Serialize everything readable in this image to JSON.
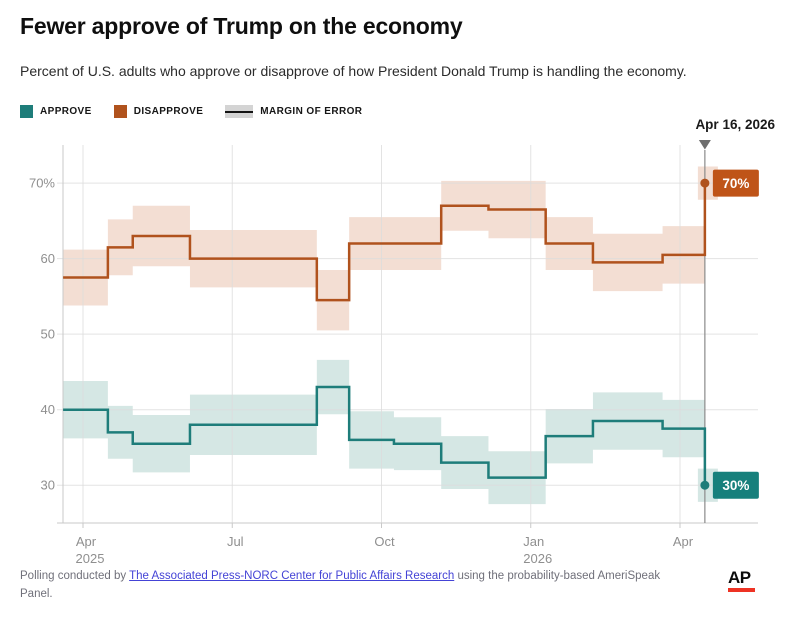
{
  "header": {
    "title": "Fewer approve of Trump on the economy",
    "subtitle": "Percent of U.S. adults who approve or disapprove of how President Donald Trump is handling the economy."
  },
  "legend": {
    "approve_label": "APPROVE",
    "disapprove_label": "DISAPPROVE",
    "moe_label": "MARGIN OF ERROR"
  },
  "colors": {
    "approve": "#1e7d7a",
    "approve_band": "#d5e7e4",
    "approve_box": "#17807c",
    "disapprove": "#b0521d",
    "disapprove_band": "#f3ded3",
    "disapprove_box": "#bf5418",
    "event_line": "#8b8b8b",
    "event_marker": "#6e6e6e",
    "grid": "#dcdcdc",
    "axis": "#c9c9c9",
    "tick_text": "#8f8f8f",
    "link": "#4443d6",
    "ap_red": "#ee3324"
  },
  "chart_data": {
    "type": "line",
    "subtype": "step-with-margin-of-error-bands",
    "title": "Fewer approve of Trump on the economy",
    "xlabel": "",
    "ylabel": "Percent",
    "x_axis": {
      "unit": "month index (Apr 1, 2025 = 1; Apr 1, 2026 = 13)",
      "domain": [
        0.6,
        14.6
      ],
      "ticks": [
        {
          "m": 1,
          "label": "Apr",
          "sublabel": "2025"
        },
        {
          "m": 4,
          "label": "Jul"
        },
        {
          "m": 7,
          "label": "Oct"
        },
        {
          "m": 10,
          "label": "Jan",
          "sublabel": "2026"
        },
        {
          "m": 13,
          "label": "Apr"
        }
      ]
    },
    "y_axis": {
      "domain": [
        25,
        75
      ],
      "ticks": [
        {
          "v": 70,
          "label": "70%"
        },
        {
          "v": 60,
          "label": "60"
        },
        {
          "v": 50,
          "label": "50"
        },
        {
          "v": 40,
          "label": "40"
        },
        {
          "v": 30,
          "label": "30"
        }
      ]
    },
    "event_line": {
      "m": 13.5,
      "label": "Apr 16, 2026"
    },
    "series": [
      {
        "name": "Disapprove",
        "steps": [
          {
            "from": 0.6,
            "to": 1.5,
            "value": 57.5,
            "moe": 3.7
          },
          {
            "from": 1.5,
            "to": 2.0,
            "value": 61.5,
            "moe": 3.7
          },
          {
            "from": 2.0,
            "to": 3.15,
            "value": 63,
            "moe": 4.0
          },
          {
            "from": 3.15,
            "to": 5.7,
            "value": 60,
            "moe": 3.8
          },
          {
            "from": 5.7,
            "to": 6.35,
            "value": 54.5,
            "moe": 4.0
          },
          {
            "from": 6.35,
            "to": 7.25,
            "value": 62,
            "moe": 3.5
          },
          {
            "from": 7.25,
            "to": 8.2,
            "value": 62,
            "moe": 3.5
          },
          {
            "from": 8.2,
            "to": 9.15,
            "value": 67,
            "moe": 3.3
          },
          {
            "from": 9.15,
            "to": 10.3,
            "value": 66.5,
            "moe": 3.8
          },
          {
            "from": 10.3,
            "to": 11.25,
            "value": 62,
            "moe": 3.5
          },
          {
            "from": 11.25,
            "to": 12.65,
            "value": 59.5,
            "moe": 3.8
          },
          {
            "from": 12.65,
            "to": 13.5,
            "value": 60.5,
            "moe": 3.8
          }
        ],
        "final": {
          "m": 13.5,
          "value": 70,
          "moe": 2.2,
          "label": "70%"
        }
      },
      {
        "name": "Approve",
        "steps": [
          {
            "from": 0.6,
            "to": 1.5,
            "value": 40,
            "moe": 3.8
          },
          {
            "from": 1.5,
            "to": 2.0,
            "value": 37,
            "moe": 3.5
          },
          {
            "from": 2.0,
            "to": 3.15,
            "value": 35.5,
            "moe": 3.8
          },
          {
            "from": 3.15,
            "to": 5.7,
            "value": 38,
            "moe": 4.0
          },
          {
            "from": 5.7,
            "to": 6.35,
            "value": 43,
            "moe": 3.6
          },
          {
            "from": 6.35,
            "to": 7.25,
            "value": 36,
            "moe": 3.8
          },
          {
            "from": 7.25,
            "to": 8.2,
            "value": 35.5,
            "moe": 3.5
          },
          {
            "from": 8.2,
            "to": 9.15,
            "value": 33,
            "moe": 3.5
          },
          {
            "from": 9.15,
            "to": 10.3,
            "value": 31,
            "moe": 3.5
          },
          {
            "from": 10.3,
            "to": 11.25,
            "value": 36.5,
            "moe": 3.6
          },
          {
            "from": 11.25,
            "to": 12.65,
            "value": 38.5,
            "moe": 3.8
          },
          {
            "from": 12.65,
            "to": 13.5,
            "value": 37.5,
            "moe": 3.8
          }
        ],
        "final": {
          "m": 13.5,
          "value": 30,
          "moe": 2.2,
          "label": "30%"
        }
      }
    ],
    "legend_position": "top-left",
    "grid": true
  },
  "footer": {
    "pre": "Polling conducted by ",
    "link_text": "The Associated Press-NORC Center for Public Affairs Research",
    "post": " using the probability-based AmeriSpeak Panel."
  },
  "logo": {
    "text": "AP"
  }
}
